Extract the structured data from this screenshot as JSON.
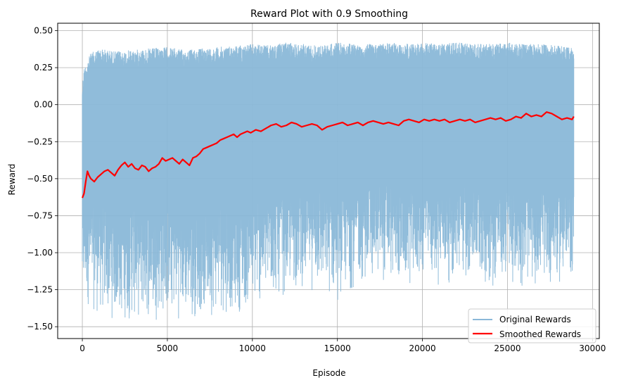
{
  "chart_data": {
    "type": "line",
    "title": "Reward Plot with 0.9 Smoothing",
    "xlabel": "Episode",
    "ylabel": "Reward",
    "xlim": [
      -1450,
      30400
    ],
    "ylim": [
      -1.58,
      0.55
    ],
    "xticks": [
      0,
      5000,
      10000,
      15000,
      20000,
      25000,
      30000
    ],
    "xtick_labels": [
      "0",
      "5000",
      "10000",
      "15000",
      "20000",
      "25000",
      "30000"
    ],
    "yticks": [
      0.5,
      0.25,
      0.0,
      -0.25,
      -0.5,
      -0.75,
      -1.0,
      -1.25,
      -1.5
    ],
    "ytick_labels": [
      "0.50",
      "0.25",
      "0.00",
      "−0.25",
      "−0.50",
      "−0.75",
      "−1.00",
      "−1.25",
      "−1.50"
    ],
    "grid": true,
    "legend_position": "bottom-right",
    "x_max": 28900,
    "series": [
      {
        "name": "Original Rewards",
        "color": "#8ab8d8",
        "kind": "band",
        "x": [
          0,
          100,
          500,
          1000,
          2000,
          3000,
          4000,
          5000,
          6000,
          7000,
          8000,
          9000,
          10000,
          11000,
          12000,
          13000,
          14000,
          15000,
          16000,
          17000,
          18000,
          19000,
          20000,
          21000,
          22000,
          23000,
          24000,
          25000,
          26000,
          27000,
          28000,
          28900
        ],
        "upper": [
          0.15,
          0.25,
          0.35,
          0.38,
          0.36,
          0.37,
          0.38,
          0.39,
          0.37,
          0.38,
          0.39,
          0.4,
          0.41,
          0.4,
          0.42,
          0.41,
          0.4,
          0.42,
          0.41,
          0.41,
          0.42,
          0.41,
          0.42,
          0.41,
          0.42,
          0.41,
          0.41,
          0.42,
          0.41,
          0.41,
          0.4,
          0.38
        ],
        "lower": [
          -1.4,
          -1.35,
          -1.4,
          -1.45,
          -1.48,
          -1.48,
          -1.47,
          -1.45,
          -1.47,
          -1.45,
          -1.43,
          -1.42,
          -1.4,
          -1.35,
          -1.3,
          -1.25,
          -1.3,
          -1.35,
          -1.25,
          -1.2,
          -1.22,
          -1.25,
          -1.2,
          -1.23,
          -1.22,
          -1.2,
          -1.25,
          -1.22,
          -1.25,
          -1.22,
          -1.23,
          -1.2
        ]
      },
      {
        "name": "Smoothed Rewards",
        "color": "#ff0000",
        "kind": "line",
        "x": [
          0,
          100,
          200,
          300,
          400,
          500,
          700,
          900,
          1100,
          1300,
          1500,
          1700,
          1900,
          2100,
          2300,
          2500,
          2700,
          2900,
          3100,
          3300,
          3500,
          3700,
          3900,
          4100,
          4300,
          4500,
          4700,
          4900,
          5100,
          5300,
          5500,
          5700,
          5900,
          6100,
          6300,
          6500,
          6700,
          6900,
          7100,
          7300,
          7500,
          7700,
          7900,
          8100,
          8300,
          8500,
          8700,
          8900,
          9100,
          9300,
          9500,
          9700,
          9900,
          10200,
          10500,
          10800,
          11100,
          11400,
          11700,
          12000,
          12300,
          12600,
          12900,
          13200,
          13500,
          13800,
          14100,
          14400,
          14700,
          15000,
          15300,
          15600,
          15900,
          16200,
          16500,
          16800,
          17100,
          17400,
          17700,
          18000,
          18300,
          18600,
          18900,
          19200,
          19500,
          19800,
          20100,
          20400,
          20700,
          21000,
          21300,
          21600,
          21900,
          22200,
          22500,
          22800,
          23100,
          23400,
          23700,
          24000,
          24300,
          24600,
          24900,
          25200,
          25500,
          25800,
          26100,
          26400,
          26700,
          27000,
          27300,
          27600,
          27900,
          28200,
          28500,
          28800,
          28900
        ],
        "y": [
          -0.63,
          -0.6,
          -0.52,
          -0.45,
          -0.48,
          -0.5,
          -0.52,
          -0.49,
          -0.47,
          -0.45,
          -0.44,
          -0.46,
          -0.48,
          -0.44,
          -0.41,
          -0.39,
          -0.42,
          -0.4,
          -0.43,
          -0.44,
          -0.41,
          -0.42,
          -0.45,
          -0.43,
          -0.42,
          -0.4,
          -0.36,
          -0.38,
          -0.37,
          -0.36,
          -0.38,
          -0.4,
          -0.37,
          -0.39,
          -0.41,
          -0.36,
          -0.35,
          -0.33,
          -0.3,
          -0.29,
          -0.28,
          -0.27,
          -0.26,
          -0.24,
          -0.23,
          -0.22,
          -0.21,
          -0.2,
          -0.22,
          -0.2,
          -0.19,
          -0.18,
          -0.19,
          -0.17,
          -0.18,
          -0.16,
          -0.14,
          -0.13,
          -0.15,
          -0.14,
          -0.12,
          -0.13,
          -0.15,
          -0.14,
          -0.13,
          -0.14,
          -0.17,
          -0.15,
          -0.14,
          -0.13,
          -0.12,
          -0.14,
          -0.13,
          -0.12,
          -0.14,
          -0.12,
          -0.11,
          -0.12,
          -0.13,
          -0.12,
          -0.13,
          -0.14,
          -0.11,
          -0.1,
          -0.11,
          -0.12,
          -0.1,
          -0.11,
          -0.1,
          -0.11,
          -0.1,
          -0.12,
          -0.11,
          -0.1,
          -0.11,
          -0.1,
          -0.12,
          -0.11,
          -0.1,
          -0.09,
          -0.1,
          -0.09,
          -0.11,
          -0.1,
          -0.08,
          -0.09,
          -0.06,
          -0.08,
          -0.07,
          -0.08,
          -0.05,
          -0.06,
          -0.08,
          -0.1,
          -0.09,
          -0.1,
          -0.08
        ]
      }
    ]
  }
}
